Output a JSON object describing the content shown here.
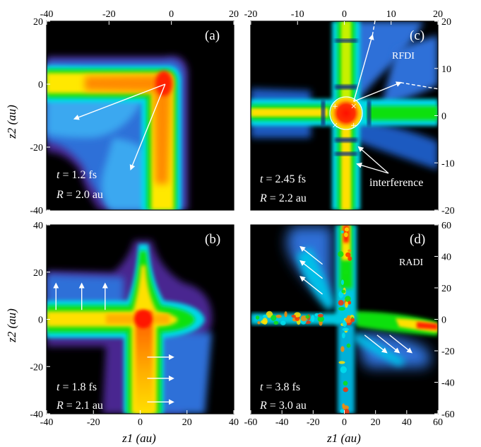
{
  "chart_data": [
    {
      "type": "heatmap",
      "panel": "(a)",
      "xlim": [
        -40,
        20
      ],
      "ylim": [
        -40,
        20
      ],
      "top_ticks": [
        "-40",
        "-20",
        "0",
        "20"
      ],
      "left_ticks": [
        "20",
        "0",
        "-20",
        "-40"
      ],
      "ylabel": "z2 (au)",
      "time": "1.2",
      "time_unit": "fs",
      "R": "2.0",
      "R_unit": "au",
      "arrows": [
        {
          "from": [
            -2,
            0
          ],
          "to": [
            -31,
            -11
          ]
        },
        {
          "from": [
            -2,
            0
          ],
          "to": [
            -13,
            -27
          ]
        }
      ]
    },
    {
      "type": "heatmap",
      "panel": "(c)",
      "xlim": [
        -20,
        20
      ],
      "ylim": [
        -20,
        20
      ],
      "top_ticks": [
        "-20",
        "-10",
        "0",
        "10",
        "20"
      ],
      "right_ticks": [
        "20",
        "10",
        "0",
        "-10",
        "-20"
      ],
      "tag": "RFDI",
      "annotation": "interference",
      "time": "2.45",
      "time_unit": "fs",
      "R": "2.2",
      "R_unit": "au",
      "markers": [
        {
          "symbol": "+",
          "at": [
            -2,
            2
          ]
        },
        {
          "symbol": "×",
          "at": [
            2,
            2
          ]
        },
        {
          "symbol": "×",
          "at": [
            -2,
            -2
          ]
        },
        {
          "symbol": "+",
          "at": [
            2,
            -2
          ]
        }
      ],
      "arrows": [
        {
          "from": [
            2,
            3
          ],
          "to": [
            6,
            17
          ],
          "style": "solid"
        },
        {
          "from": [
            2,
            3
          ],
          "to": [
            12,
            7
          ],
          "style": "solid"
        },
        {
          "from": [
            6,
            17
          ],
          "to": [
            8,
            28
          ],
          "style": "dashed"
        },
        {
          "from": [
            12,
            7
          ],
          "to": [
            24,
            5
          ],
          "style": "dashed"
        }
      ]
    },
    {
      "type": "heatmap",
      "panel": "(b)",
      "xlim": [
        -40,
        40
      ],
      "ylim": [
        -40,
        40
      ],
      "left_ticks": [
        "40",
        "20",
        "0",
        "-20",
        "-40"
      ],
      "bottom_ticks": [
        "-40",
        "-20",
        "0",
        "20",
        "40"
      ],
      "xlabel": "z1 (au)",
      "ylabel": "z2 (au)",
      "time": "1.8",
      "time_unit": "fs",
      "R": "2.1",
      "R_unit": "au",
      "arrows": [
        {
          "from": [
            -36,
            4
          ],
          "to": [
            -36,
            15
          ]
        },
        {
          "from": [
            -25,
            4
          ],
          "to": [
            -25,
            15
          ]
        },
        {
          "from": [
            -15,
            4
          ],
          "to": [
            -15,
            15
          ]
        },
        {
          "from": [
            3,
            -16
          ],
          "to": [
            14,
            -16
          ]
        },
        {
          "from": [
            3,
            -25
          ],
          "to": [
            14,
            -25
          ]
        },
        {
          "from": [
            3,
            -35
          ],
          "to": [
            14,
            -35
          ]
        }
      ]
    },
    {
      "type": "heatmap",
      "panel": "(d)",
      "xlim": [
        -60,
        60
      ],
      "ylim": [
        -60,
        60
      ],
      "bottom_ticks": [
        "-60",
        "-40",
        "-20",
        "0",
        "20",
        "40",
        "60"
      ],
      "right_ticks": [
        "60",
        "40",
        "20",
        "0",
        "-20",
        "-40",
        "-60"
      ],
      "xlabel": "z1 (au)",
      "tag": "RADI",
      "time": "3.8",
      "time_unit": "fs",
      "R": "3.0",
      "R_unit": "au",
      "arrows": [
        {
          "from": [
            -14,
            35
          ],
          "to": [
            -28,
            46
          ]
        },
        {
          "from": [
            -14,
            26
          ],
          "to": [
            -28,
            37
          ]
        },
        {
          "from": [
            -14,
            16
          ],
          "to": [
            -28,
            27
          ]
        },
        {
          "from": [
            13,
            -10
          ],
          "to": [
            27,
            -21
          ]
        },
        {
          "from": [
            21,
            -10
          ],
          "to": [
            35,
            -21
          ]
        },
        {
          "from": [
            29,
            -10
          ],
          "to": [
            43,
            -21
          ]
        }
      ]
    }
  ],
  "colors": {
    "background": "#000000",
    "red": "#ff1400",
    "orange": "#ff8a00",
    "yellow": "#ffe800",
    "green": "#10e010",
    "cyan": "#00d8e8",
    "blue": "#2f6fd8",
    "purple": "#4a2590"
  }
}
